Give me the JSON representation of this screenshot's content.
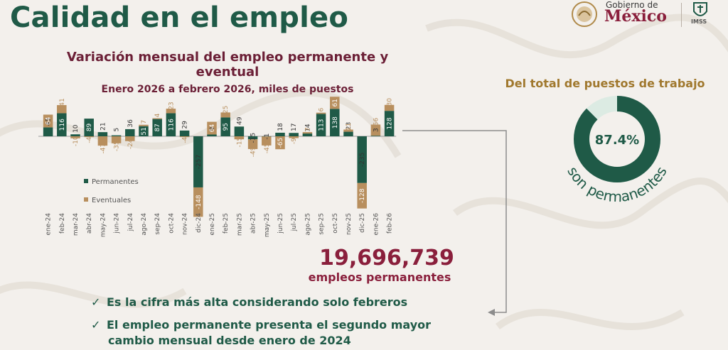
{
  "page": {
    "title": "Calidad en el empleo",
    "logo": {
      "line1": "Gobierno de",
      "line2": "México",
      "secondary": "IMSS"
    }
  },
  "chart_title": {
    "line1": "Variación mensual del empleo permanente y",
    "line2": "eventual",
    "line3": "Enero 2026 a febrero 2026, miles de puestos"
  },
  "legend": {
    "permanentes": "Permanentes",
    "eventuales": "Eventuales"
  },
  "colors": {
    "permanentes": "#1f5a47",
    "eventuales": "#b88f5e",
    "accent": "#8a1f3c",
    "gold": "#a0782d"
  },
  "chart_data": [
    {
      "type": "bar",
      "title": "Variación mensual del empleo permanente y eventual",
      "subtitle": "Enero 2026 a febrero 2026, miles de puestos",
      "categories": [
        "ene-24",
        "feb-24",
        "mar-24",
        "abr-24",
        "may-24",
        "jun-24",
        "jul-24",
        "ago-24",
        "sep-24",
        "oct-24",
        "nov-24",
        "dic-24",
        "ene-25",
        "feb-25",
        "mar-25",
        "abr-25",
        "may-25",
        "jun-25",
        "jul-25",
        "ago-25",
        "sep-25",
        "oct-25",
        "nov-25",
        "dic-25",
        "ene-26",
        "feb-26"
      ],
      "series": [
        {
          "name": "Permanentes",
          "values": [
            45,
            116,
            10,
            89,
            21,
            5,
            36,
            51,
            87,
            116,
            29,
            -257,
            9,
            95,
            49,
            -15,
            -1,
            18,
            17,
            14,
            113,
            138,
            23,
            -235,
            3,
            128
          ]
        },
        {
          "name": "Eventuales",
          "values": [
            64,
            41,
            -10,
            -4,
            -47,
            -35,
            -24,
            7,
            4,
            23,
            -4,
            -148,
            64,
            25,
            -15,
            -49,
            -45,
            -65,
            -9,
            7,
            6,
            61,
            11,
            -128,
            56,
            30
          ]
        }
      ],
      "stacked": true
    },
    {
      "type": "pie",
      "title": "Del total de puestos de trabajo",
      "values": [
        87.4,
        12.6
      ],
      "center_label": "87.4%",
      "caption": "son permanentes"
    }
  ],
  "highlight": {
    "number": "19,696,739",
    "label": "empleos permanentes",
    "bullets": [
      "Es la cifra más alta considerando solo febreros",
      "El  empleo permanente presenta el segundo mayor",
      "cambio mensual desde enero de 2024"
    ]
  }
}
